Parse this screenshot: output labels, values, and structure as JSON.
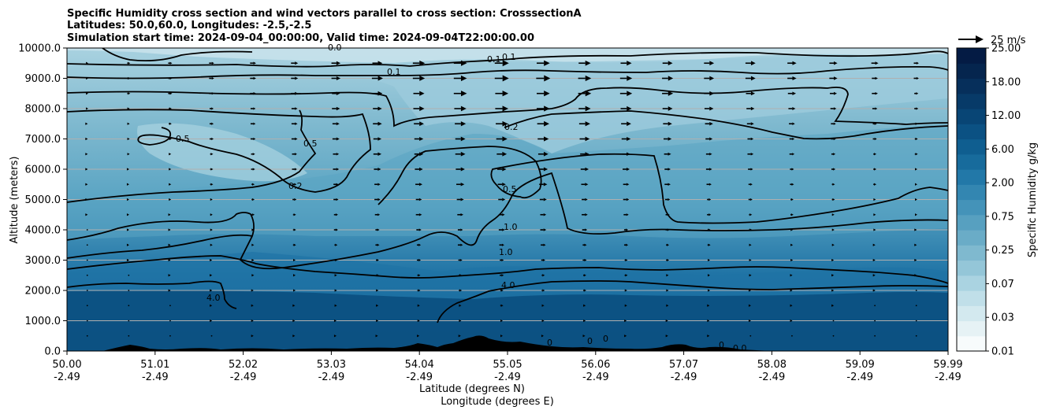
{
  "chart_data": {
    "type": "contourf",
    "title": {
      "line1": "Specific Humidity cross section and wind vectors parallel to cross section: CrosssectionA",
      "line2": "Latitudes: 50.0,60.0, Longitudes: -2.5,-2.5",
      "line3": "Simulation start time: 2024-09-04_00:00:00, Valid time: 2024-09-04T22:00:00.00"
    },
    "ylabel": "Altitude (meters)",
    "xlabel_lat": "Latitude (degrees N)",
    "xlabel_lon": "Longitude (degrees E)",
    "ylim": [
      0,
      10000
    ],
    "xlim": [
      50.0,
      59.99
    ],
    "yticks": [
      "0.0",
      "1000.0",
      "2000.0",
      "3000.0",
      "4000.0",
      "5000.0",
      "6000.0",
      "7000.0",
      "8000.0",
      "9000.0",
      "10000.0"
    ],
    "xticks": [
      {
        "lat": "50.00",
        "lon": "-2.49"
      },
      {
        "lat": "51.01",
        "lon": "-2.49"
      },
      {
        "lat": "52.02",
        "lon": "-2.49"
      },
      {
        "lat": "53.03",
        "lon": "-2.49"
      },
      {
        "lat": "54.04",
        "lon": "-2.49"
      },
      {
        "lat": "55.05",
        "lon": "-2.49"
      },
      {
        "lat": "56.06",
        "lon": "-2.49"
      },
      {
        "lat": "57.07",
        "lon": "-2.49"
      },
      {
        "lat": "58.08",
        "lon": "-2.49"
      },
      {
        "lat": "59.09",
        "lon": "-2.49"
      },
      {
        "lat": "59.99",
        "lon": "-2.49"
      }
    ],
    "colorbar": {
      "label": "Specific Humidity g/kg",
      "levels": [
        "0.01",
        "0.03",
        "0.07",
        "0.25",
        "0.75",
        "2.00",
        "6.00",
        "12.00",
        "18.00",
        "25.00"
      ],
      "colors": [
        "#f7fbfc",
        "#e6f2f5",
        "#d3e9ef",
        "#c0dfe9",
        "#aad3e1",
        "#94c6d8",
        "#7fb9cf",
        "#6aacc7",
        "#57a0c0",
        "#4493b9",
        "#3386b1",
        "#2278a8",
        "#176b9c",
        "#0f5e90",
        "#0b5183",
        "#084575",
        "#073a68",
        "#062f5b",
        "#05254e",
        "#041b44"
      ]
    },
    "quiver_key": {
      "label": "25 m/s",
      "magnitude": 25
    },
    "contour_labels": [
      "0.0",
      "0.1",
      "0.1",
      "0.1",
      "0.2",
      "0.2",
      "0.5",
      "0.5",
      "0.5",
      "1.0",
      "1.0",
      "4.0",
      "4.0",
      "0",
      "0",
      "0",
      "0",
      "0.0"
    ],
    "wind_rows_altitude_m": [
      9500,
      9000,
      8500,
      8000,
      7500,
      7000,
      6500,
      6000,
      5500,
      5000,
      4500,
      4000,
      3500,
      3000,
      2500,
      2000,
      1500,
      1000,
      500
    ],
    "wind_cols_latitude": [
      50.23,
      50.7,
      51.17,
      51.64,
      52.11,
      52.58,
      53.05,
      53.52,
      53.99,
      54.46,
      54.93,
      55.4,
      55.87,
      56.34,
      56.81,
      57.28,
      57.75,
      58.22,
      58.69,
      59.16,
      59.63
    ],
    "wind_u_ms": [
      [
        2,
        3,
        4,
        5,
        6,
        7,
        9,
        10,
        12,
        13,
        14,
        13,
        12,
        11,
        10,
        10,
        10,
        9,
        8,
        7,
        5
      ],
      [
        2,
        3,
        4,
        5,
        6,
        7,
        9,
        11,
        12,
        13,
        14,
        14,
        13,
        12,
        11,
        10,
        10,
        9,
        8,
        6,
        5
      ],
      [
        2,
        3,
        4,
        5,
        6,
        7,
        8,
        10,
        11,
        13,
        13,
        13,
        13,
        12,
        11,
        10,
        9,
        8,
        7,
        6,
        4
      ],
      [
        2,
        2,
        3,
        4,
        5,
        6,
        8,
        9,
        11,
        12,
        13,
        13,
        12,
        11,
        10,
        9,
        8,
        7,
        6,
        5,
        4
      ],
      [
        1,
        2,
        3,
        4,
        5,
        6,
        7,
        9,
        10,
        11,
        12,
        12,
        11,
        10,
        9,
        8,
        7,
        6,
        5,
        4,
        3
      ],
      [
        1,
        2,
        3,
        4,
        5,
        6,
        7,
        8,
        9,
        10,
        11,
        11,
        10,
        9,
        8,
        7,
        6,
        5,
        5,
        4,
        3
      ],
      [
        1,
        2,
        2,
        3,
        4,
        5,
        6,
        8,
        9,
        10,
        10,
        10,
        9,
        8,
        7,
        6,
        6,
        5,
        4,
        3,
        3
      ],
      [
        1,
        1,
        2,
        3,
        4,
        5,
        6,
        7,
        8,
        9,
        9,
        9,
        8,
        7,
        6,
        6,
        5,
        4,
        4,
        3,
        2
      ],
      [
        1,
        1,
        2,
        3,
        3,
        4,
        5,
        6,
        7,
        8,
        8,
        8,
        7,
        6,
        6,
        5,
        4,
        4,
        3,
        3,
        2
      ],
      [
        1,
        1,
        2,
        2,
        3,
        4,
        5,
        6,
        6,
        7,
        7,
        7,
        6,
        6,
        5,
        4,
        4,
        3,
        3,
        2,
        2
      ],
      [
        1,
        1,
        1,
        2,
        3,
        3,
        4,
        5,
        6,
        6,
        6,
        6,
        6,
        5,
        4,
        4,
        3,
        3,
        2,
        2,
        2
      ],
      [
        0,
        1,
        1,
        2,
        2,
        3,
        4,
        4,
        5,
        5,
        6,
        6,
        5,
        4,
        4,
        3,
        3,
        2,
        2,
        2,
        1
      ],
      [
        0,
        1,
        1,
        2,
        2,
        3,
        3,
        4,
        4,
        5,
        5,
        5,
        4,
        4,
        3,
        3,
        2,
        2,
        2,
        1,
        1
      ],
      [
        0,
        1,
        1,
        1,
        2,
        2,
        3,
        3,
        4,
        4,
        4,
        4,
        4,
        3,
        3,
        2,
        2,
        2,
        1,
        1,
        1
      ],
      [
        0,
        0,
        1,
        1,
        2,
        2,
        2,
        3,
        3,
        3,
        4,
        3,
        3,
        3,
        2,
        2,
        2,
        1,
        1,
        1,
        1
      ],
      [
        0,
        0,
        1,
        1,
        1,
        2,
        2,
        2,
        3,
        3,
        3,
        3,
        3,
        2,
        2,
        2,
        1,
        1,
        1,
        1,
        0
      ],
      [
        0,
        0,
        0,
        1,
        1,
        1,
        2,
        2,
        2,
        2,
        3,
        2,
        2,
        2,
        2,
        1,
        1,
        1,
        1,
        0,
        0
      ],
      [
        0,
        0,
        0,
        1,
        1,
        1,
        1,
        2,
        2,
        2,
        2,
        2,
        2,
        1,
        1,
        1,
        1,
        1,
        0,
        0,
        0
      ],
      [
        0,
        0,
        0,
        0,
        1,
        1,
        1,
        1,
        1,
        1,
        2,
        1,
        1,
        1,
        1,
        1,
        0,
        0,
        0,
        0,
        0
      ]
    ]
  }
}
